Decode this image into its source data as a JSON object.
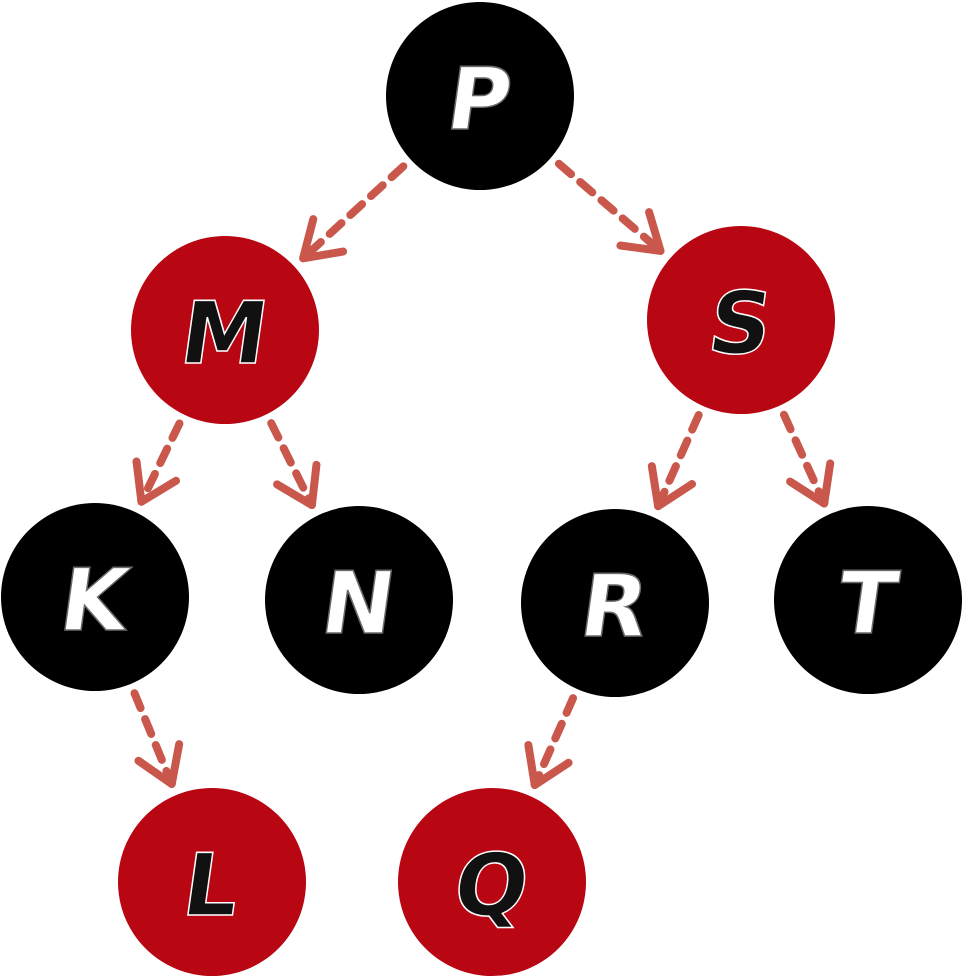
{
  "colors": {
    "black_node": "#000000",
    "red_node": "#b80612",
    "edge": "#c9574c",
    "label_on_black": "#ffffff",
    "label_on_red": "#111111"
  },
  "nodes": [
    {
      "id": "P",
      "label": "P",
      "color": "black"
    },
    {
      "id": "M",
      "label": "M",
      "color": "red"
    },
    {
      "id": "S",
      "label": "S",
      "color": "red"
    },
    {
      "id": "K",
      "label": "K",
      "color": "black"
    },
    {
      "id": "N",
      "label": "N",
      "color": "black"
    },
    {
      "id": "R",
      "label": "R",
      "color": "black"
    },
    {
      "id": "T",
      "label": "T",
      "color": "black"
    },
    {
      "id": "L",
      "label": "L",
      "color": "red"
    },
    {
      "id": "Q",
      "label": "Q",
      "color": "red"
    }
  ],
  "edges": [
    {
      "from": "P",
      "to": "M"
    },
    {
      "from": "P",
      "to": "S"
    },
    {
      "from": "M",
      "to": "K"
    },
    {
      "from": "M",
      "to": "N"
    },
    {
      "from": "S",
      "to": "R"
    },
    {
      "from": "S",
      "to": "T"
    },
    {
      "from": "K",
      "to": "L"
    },
    {
      "from": "R",
      "to": "Q"
    }
  ]
}
